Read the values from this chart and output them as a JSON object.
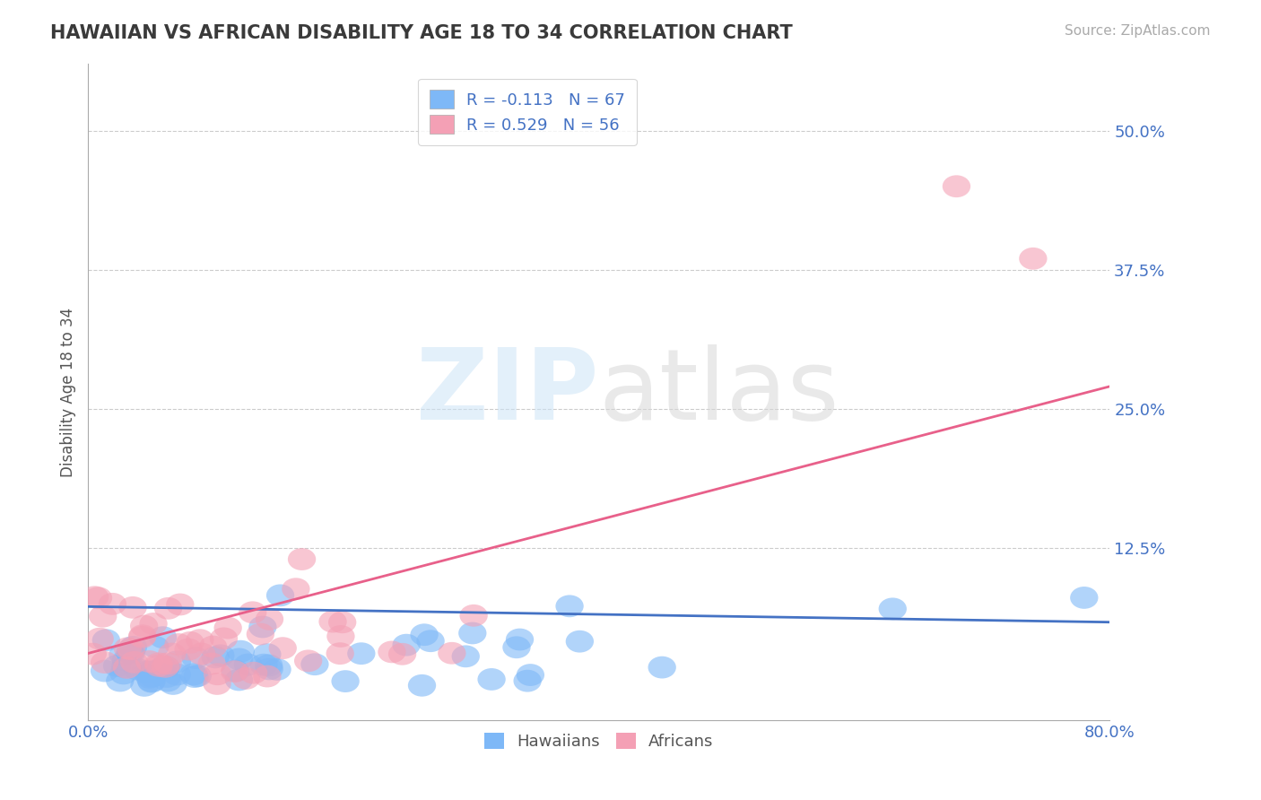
{
  "title": "HAWAIIAN VS AFRICAN DISABILITY AGE 18 TO 34 CORRELATION CHART",
  "source": "Source: ZipAtlas.com",
  "ylabel": "Disability Age 18 to 34",
  "xlim": [
    0.0,
    0.8
  ],
  "ylim": [
    -0.03,
    0.56
  ],
  "xticks": [
    0.0,
    0.1,
    0.2,
    0.3,
    0.4,
    0.5,
    0.6,
    0.7,
    0.8
  ],
  "xticklabels": [
    "0.0%",
    "",
    "",
    "",
    "",
    "",
    "",
    "",
    "80.0%"
  ],
  "yticks": [
    0.125,
    0.25,
    0.375,
    0.5
  ],
  "yticklabels": [
    "12.5%",
    "25.0%",
    "37.5%",
    "50.0%"
  ],
  "R_hawaiian": -0.113,
  "N_hawaiian": 67,
  "R_african": 0.529,
  "N_african": 56,
  "hawaiian_color": "#7eb8f7",
  "african_color": "#f4a0b5",
  "hawaiian_line_color": "#4472c4",
  "african_line_color": "#e8608a",
  "legend_label_hawaiian": "Hawaiians",
  "legend_label_african": "Africans",
  "title_color": "#3a3a3a",
  "axis_color": "#4472c4",
  "watermark": "ZIPatlas",
  "background_color": "#ffffff",
  "grid_color": "#cccccc",
  "hawaiian_trend": [
    0.072,
    0.058
  ],
  "african_trend": [
    0.03,
    0.27
  ],
  "seed": 42
}
